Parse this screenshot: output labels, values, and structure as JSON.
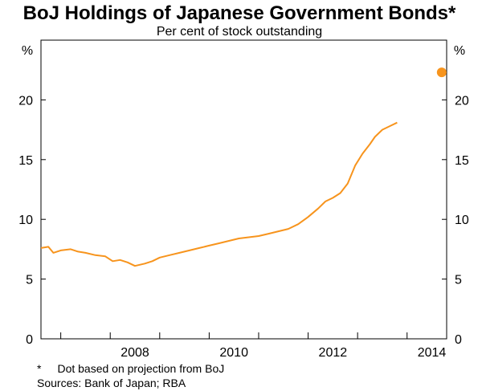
{
  "chart_data": {
    "type": "line",
    "title": "BoJ Holdings of Japanese Government Bonds*",
    "subtitle": "Per cent of stock outstanding",
    "ylabel_left": "%",
    "ylabel_right": "%",
    "ylim": [
      0,
      25
    ],
    "yticks": [
      0,
      5,
      10,
      15,
      20
    ],
    "xlim": [
      2006.6,
      2014.8
    ],
    "xticks": [
      2008,
      2010,
      2012,
      2014
    ],
    "xtick_labels": [
      "2008",
      "2010",
      "2012",
      "2014"
    ],
    "series": [
      {
        "name": "BoJ holdings",
        "color": "#f7941d",
        "x": [
          2006.6,
          2006.75,
          2006.85,
          2007.0,
          2007.2,
          2007.35,
          2007.5,
          2007.7,
          2007.9,
          2008.05,
          2008.2,
          2008.35,
          2008.5,
          2008.7,
          2008.85,
          2009.0,
          2009.2,
          2009.4,
          2009.6,
          2009.8,
          2010.0,
          2010.2,
          2010.4,
          2010.6,
          2010.8,
          2011.0,
          2011.2,
          2011.4,
          2011.6,
          2011.8,
          2012.0,
          2012.2,
          2012.35,
          2012.5,
          2012.65,
          2012.8,
          2012.95,
          2013.1,
          2013.25,
          2013.35,
          2013.5,
          2013.65,
          2013.8
        ],
        "values": [
          7.6,
          7.7,
          7.2,
          7.4,
          7.5,
          7.3,
          7.2,
          7.0,
          6.9,
          6.5,
          6.6,
          6.4,
          6.1,
          6.3,
          6.5,
          6.8,
          7.0,
          7.2,
          7.4,
          7.6,
          7.8,
          8.0,
          8.2,
          8.4,
          8.5,
          8.6,
          8.8,
          9.0,
          9.2,
          9.6,
          10.2,
          10.9,
          11.5,
          11.8,
          12.2,
          13.0,
          14.5,
          15.5,
          16.3,
          16.9,
          17.5,
          17.8,
          18.1
        ]
      }
    ],
    "annotations": [
      {
        "label": "Projection",
        "x": 2014.7,
        "value": 22.3,
        "color": "#f7941d"
      }
    ],
    "footnotes": [
      {
        "marker": "*",
        "text": "Dot based on projection from BoJ"
      },
      {
        "marker": "",
        "text": "Sources: Bank of Japan; RBA"
      }
    ]
  }
}
